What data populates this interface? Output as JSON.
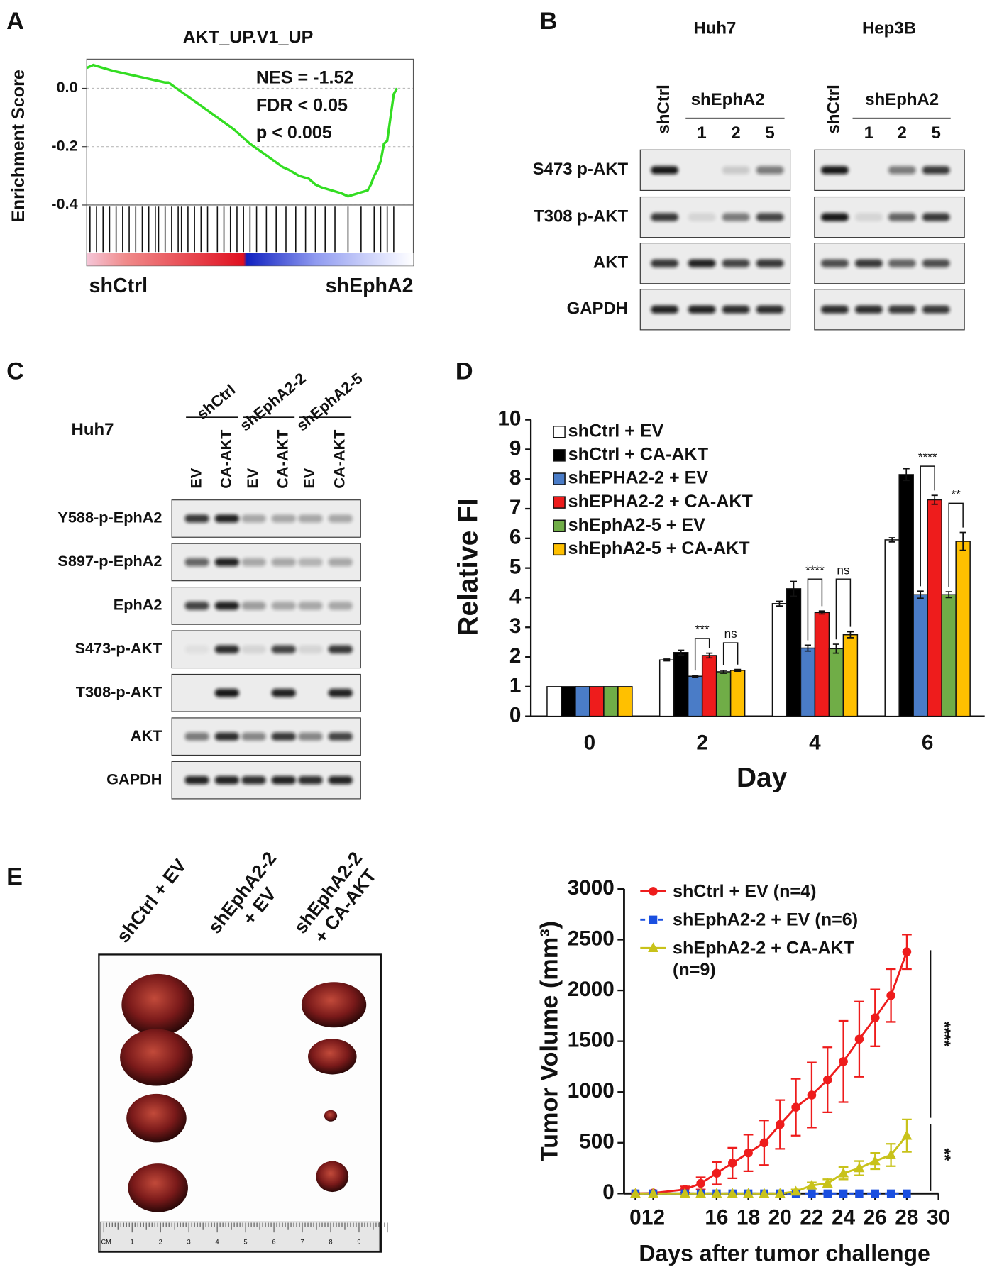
{
  "panel_labels": [
    "A",
    "B",
    "C",
    "D",
    "E"
  ],
  "chart_data": [
    {
      "type": "gsea",
      "title": "AKT_UP.V1_UP",
      "y_label": "Enrichment Score",
      "annotations": [
        "NES = -1.52",
        "FDR < 0.05",
        "p < 0.005"
      ],
      "x": [
        0,
        2,
        5,
        8,
        12,
        16,
        20,
        24,
        25,
        30,
        35,
        40,
        45,
        50,
        55,
        60,
        62,
        65,
        68,
        70,
        72,
        75,
        78,
        80,
        83,
        86,
        87,
        88,
        89,
        90,
        91,
        92,
        93,
        94,
        95
      ],
      "values": [
        0.07,
        0.08,
        0.07,
        0.06,
        0.05,
        0.04,
        0.03,
        0.02,
        0.02,
        -0.02,
        -0.06,
        -0.1,
        -0.14,
        -0.19,
        -0.23,
        -0.27,
        -0.28,
        -0.3,
        -0.31,
        -0.33,
        -0.34,
        -0.35,
        -0.36,
        -0.37,
        -0.36,
        -0.35,
        -0.33,
        -0.3,
        -0.28,
        -0.25,
        -0.19,
        -0.18,
        -0.1,
        -0.02,
        0.0
      ],
      "color": "#33dd22",
      "xlim": [
        0,
        100
      ],
      "ylim": [
        -0.4,
        0.1
      ],
      "yticks": [
        {
          "value": 0,
          "label": "0.0"
        },
        -0.2,
        -0.4
      ],
      "grid": true,
      "hits": [
        1,
        3,
        5,
        7,
        9,
        11,
        13,
        15,
        17,
        19,
        21,
        22,
        24,
        26,
        28,
        29,
        31,
        33,
        35,
        37,
        40,
        42,
        44,
        46,
        48,
        50,
        52,
        55,
        58,
        61,
        64,
        67,
        70,
        73,
        76,
        80,
        84,
        88,
        90,
        92,
        94
      ],
      "phenotype_labels": [
        {
          "text": "shCtrl",
          "color": "#e8322b"
        },
        {
          "text": "shEphA2",
          "color": "#1f2a7a"
        }
      ]
    },
    {
      "type": "bar",
      "x_label": "Day",
      "y_label": "Relative FI",
      "categories": [
        "0",
        "2",
        "4",
        "6"
      ],
      "ylim": [
        0,
        10
      ],
      "yticks": [
        0,
        1,
        2,
        3,
        4,
        5,
        6,
        7,
        8,
        9,
        10
      ],
      "legend_position": "upper left",
      "series": [
        {
          "name": "shCtrl + EV",
          "color": "#ffffff",
          "values": [
            1,
            1.9,
            3.8,
            5.95
          ],
          "errors": [
            0,
            0.03,
            0.08,
            0.07
          ]
        },
        {
          "name": "shCtrl + CA-AKT",
          "color": "#000000",
          "values": [
            1,
            2.15,
            4.3,
            8.15
          ],
          "errors": [
            0,
            0.08,
            0.25,
            0.2
          ]
        },
        {
          "name": "shEPHA2-2 + EV",
          "color": "#4a7cc7",
          "values": [
            1,
            1.35,
            2.3,
            4.1
          ],
          "errors": [
            0,
            0.03,
            0.1,
            0.12
          ]
        },
        {
          "name": "shEPHA2-2 + CA-AKT",
          "color": "#ee1c1c",
          "values": [
            1,
            2.05,
            3.5,
            7.3
          ],
          "errors": [
            0,
            0.08,
            0.05,
            0.15
          ]
        },
        {
          "name": "shEphA2-5 + EV",
          "color": "#70ad47",
          "values": [
            1,
            1.5,
            2.28,
            4.1
          ],
          "errors": [
            0,
            0.05,
            0.15,
            0.1
          ]
        },
        {
          "name": "shEphA2-5 + CA-AKT",
          "color": "#ffc000",
          "values": [
            1,
            1.55,
            2.75,
            5.9
          ],
          "errors": [
            0,
            0.03,
            0.1,
            0.3
          ]
        }
      ],
      "significance": [
        "***",
        "ns",
        "****",
        "ns",
        "****",
        "**"
      ]
    },
    {
      "type": "line",
      "x_label": "Days after tumor challenge",
      "y_label": "Tumor Volume (mm³)",
      "x": [
        0,
        12,
        14,
        15,
        16,
        17,
        18,
        19,
        20,
        21,
        22,
        23,
        24,
        25,
        26,
        27,
        28
      ],
      "xlim": [
        0,
        30
      ],
      "xticks": [
        0,
        12,
        16,
        18,
        20,
        22,
        24,
        26,
        28,
        30
      ],
      "ylim": [
        0,
        3000
      ],
      "yticks": [
        0,
        500,
        1000,
        1500,
        2000,
        2500,
        3000
      ],
      "legend_position": "upper left",
      "series": [
        {
          "name": "shCtrl + EV (n=4)",
          "color": "#ee1c1c",
          "marker": "circle",
          "linestyle": "solid",
          "values": [
            0,
            5,
            40,
            100,
            200,
            300,
            400,
            500,
            680,
            850,
            970,
            1120,
            1300,
            1520,
            1730,
            1950,
            2380
          ],
          "errors": [
            0,
            0,
            30,
            60,
            110,
            150,
            180,
            220,
            240,
            280,
            320,
            320,
            400,
            370,
            280,
            260,
            170
          ]
        },
        {
          "name": "shEphA2-2 + EV (n=6)",
          "color": "#1a4fe0",
          "marker": "square",
          "linestyle": "dashed",
          "values": [
            0,
            0,
            0,
            0,
            0,
            0,
            0,
            0,
            0,
            0,
            0,
            0,
            0,
            0,
            0,
            0,
            0
          ],
          "errors": [
            0,
            0,
            0,
            0,
            0,
            0,
            0,
            0,
            0,
            0,
            0,
            0,
            0,
            0,
            0,
            0,
            0
          ]
        },
        {
          "name": "shEphA2-2 + CA-AKT\n(n=9)",
          "color": "#c8c21a",
          "marker": "triangle",
          "linestyle": "solid",
          "values": [
            0,
            0,
            0,
            0,
            0,
            0,
            0,
            0,
            0,
            20,
            80,
            100,
            200,
            250,
            320,
            380,
            570
          ],
          "errors": [
            0,
            0,
            0,
            0,
            0,
            0,
            0,
            0,
            0,
            20,
            30,
            40,
            60,
            70,
            80,
            110,
            160
          ]
        }
      ],
      "significance": [
        "****",
        "**"
      ]
    }
  ],
  "blot_b": {
    "cell_lines": [
      "Huh7",
      "Hep3B"
    ],
    "control": "shCtrl",
    "group": "shEphA2",
    "lanes": [
      "1",
      "2",
      "5"
    ],
    "rows": [
      "S473 p-AKT",
      "T308 p-AKT",
      "AKT",
      "GAPDH"
    ],
    "intensity": [
      [
        [
          0.95,
          0,
          0.15,
          0.5
        ],
        [
          0.8,
          0.1,
          0.5,
          0.75
        ],
        [
          0.8,
          0.9,
          0.75,
          0.8
        ],
        [
          0.9,
          0.9,
          0.85,
          0.85
        ]
      ],
      [
        [
          0.95,
          0,
          0.5,
          0.8
        ],
        [
          0.95,
          0.1,
          0.6,
          0.8
        ],
        [
          0.7,
          0.8,
          0.6,
          0.7
        ],
        [
          0.85,
          0.85,
          0.8,
          0.8
        ]
      ]
    ]
  },
  "blot_c": {
    "cell_line": "Huh7",
    "groups": [
      "shCtrl",
      "shEphA2-2",
      "shEphA2-5"
    ],
    "lanes": [
      "EV",
      "CA-AKT"
    ],
    "rows": [
      "Y588-p-EphA2",
      "S897-p-EphA2",
      "EphA2",
      "S473-p-AKT",
      "T308-p-AKT",
      "AKT",
      "GAPDH"
    ],
    "intensity": [
      [
        0.8,
        0.9,
        0.3,
        0.3,
        0.3,
        0.3
      ],
      [
        0.6,
        0.9,
        0.3,
        0.3,
        0.25,
        0.3
      ],
      [
        0.75,
        0.9,
        0.35,
        0.3,
        0.3,
        0.3
      ],
      [
        0.05,
        0.85,
        0.1,
        0.75,
        0.1,
        0.8
      ],
      [
        0,
        0.95,
        0,
        0.9,
        0,
        0.9
      ],
      [
        0.5,
        0.85,
        0.45,
        0.8,
        0.45,
        0.75
      ],
      [
        0.9,
        0.9,
        0.85,
        0.9,
        0.85,
        0.9
      ]
    ]
  },
  "photo_e": {
    "column_labels": [
      "shCtrl + EV",
      "shEphA2-2\n+ EV",
      "shEphA2-2\n+ CA-AKT"
    ],
    "ruler": [
      "CM",
      "1",
      "2",
      "3",
      "4",
      "5",
      "6",
      "7",
      "8",
      "9"
    ]
  }
}
